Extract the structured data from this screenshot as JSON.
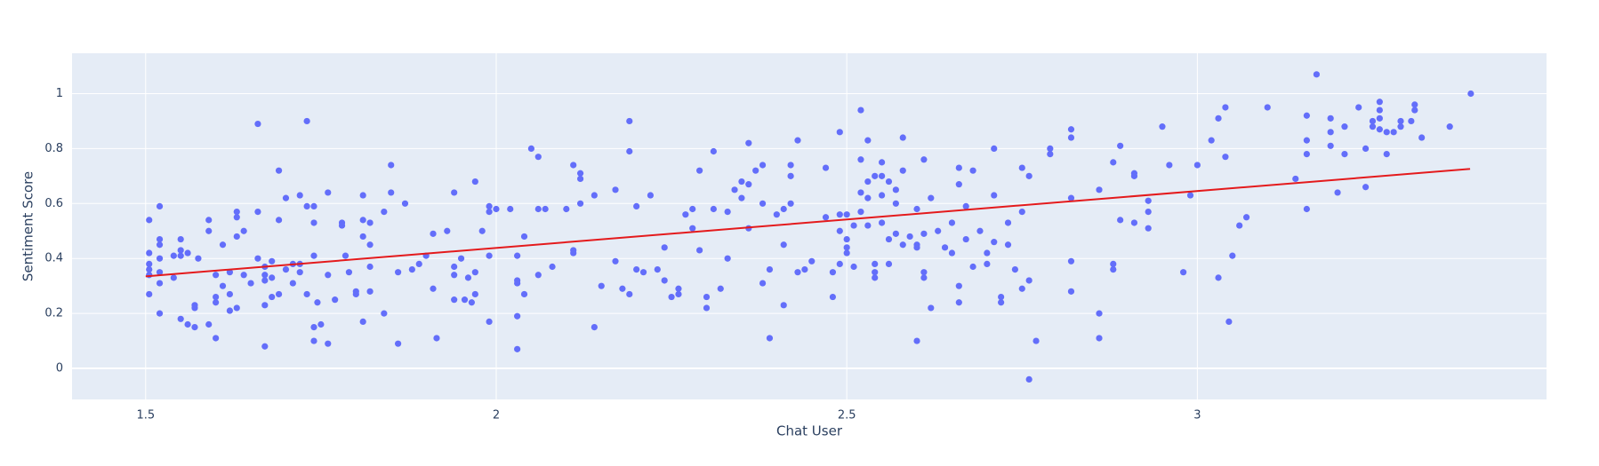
{
  "chart_data": {
    "type": "scatter",
    "x_label": "Chat User",
    "y_label": "Sentiment Score",
    "color": "#636efa",
    "x": [
      1.505,
      1.505,
      1.505,
      1.505,
      1.505,
      1.505,
      1.52,
      1.52,
      1.52,
      1.52,
      1.52,
      1.52,
      1.52,
      1.54,
      1.54,
      1.55,
      1.55,
      1.55,
      1.55,
      1.56,
      1.56,
      1.57,
      1.57,
      1.57,
      1.575,
      1.59,
      1.59,
      1.59,
      1.6,
      1.6,
      1.6,
      1.6,
      1.61,
      1.61,
      1.62,
      1.62,
      1.62,
      1.63,
      1.63,
      1.63,
      1.63,
      1.64,
      1.64,
      1.65,
      1.66,
      1.66,
      1.66,
      1.67,
      1.67,
      1.67,
      1.67,
      1.67,
      1.68,
      1.68,
      1.68,
      1.69,
      1.69,
      1.69,
      1.7,
      1.7,
      1.71,
      1.71,
      1.72,
      1.72,
      1.72,
      1.73,
      1.73,
      1.73,
      1.74,
      1.74,
      1.74,
      1.74,
      1.74,
      1.745,
      1.75,
      1.76,
      1.76,
      1.76,
      1.77,
      1.78,
      1.78,
      1.785,
      1.79,
      1.8,
      1.8,
      1.81,
      1.81,
      1.81,
      1.81,
      1.82,
      1.82,
      1.82,
      1.82,
      1.84,
      1.84,
      1.85,
      1.85,
      1.86,
      1.86,
      1.87,
      1.88,
      1.89,
      1.9,
      1.91,
      1.91,
      1.915,
      1.93,
      1.94,
      1.94,
      1.94,
      1.94,
      1.95,
      1.955,
      1.96,
      1.965,
      1.97,
      1.97,
      1.97,
      1.98,
      1.99,
      1.99,
      1.99,
      1.99,
      2.0,
      2.02,
      2.03,
      2.03,
      2.03,
      2.03,
      2.03,
      2.04,
      2.04,
      2.05,
      2.06,
      2.06,
      2.06,
      2.07,
      2.08,
      2.1,
      2.11,
      2.11,
      2.11,
      2.12,
      2.12,
      2.12,
      2.14,
      2.14,
      2.15,
      2.17,
      2.17,
      2.18,
      2.19,
      2.19,
      2.19,
      2.2,
      2.2,
      2.21,
      2.22,
      2.23,
      2.24,
      2.24,
      2.25,
      2.26,
      2.26,
      2.27,
      2.28,
      2.28,
      2.29,
      2.29,
      2.3,
      2.3,
      2.31,
      2.31,
      2.32,
      2.33,
      2.33,
      2.34,
      2.35,
      2.35,
      2.36,
      2.36,
      2.36,
      2.37,
      2.38,
      2.38,
      2.38,
      2.39,
      2.39,
      2.4,
      2.41,
      2.41,
      2.41,
      2.42,
      2.42,
      2.42,
      2.43,
      2.43,
      2.44,
      2.45,
      2.47,
      2.48,
      2.49,
      2.49,
      2.5,
      2.5,
      2.52,
      2.52,
      2.53,
      2.53,
      2.54,
      2.54,
      2.55,
      2.55,
      2.56,
      2.57,
      2.58,
      2.6,
      2.6,
      2.6,
      2.61,
      2.61,
      2.47,
      2.48,
      2.49,
      2.49,
      2.5,
      2.5,
      2.51,
      2.51,
      2.52,
      2.52,
      2.53,
      2.53,
      2.54,
      2.54,
      2.55,
      2.55,
      2.56,
      2.56,
      2.57,
      2.57,
      2.58,
      2.58,
      2.59,
      2.6,
      2.61,
      2.61,
      2.62,
      2.62,
      2.63,
      2.64,
      2.65,
      2.65,
      2.66,
      2.66,
      2.66,
      2.66,
      2.67,
      2.67,
      2.68,
      2.68,
      2.69,
      2.7,
      2.7,
      2.71,
      2.71,
      2.71,
      2.72,
      2.72,
      2.73,
      2.73,
      2.74,
      2.75,
      2.75,
      2.75,
      2.76,
      2.76,
      2.77,
      2.79,
      2.79,
      2.82,
      2.82,
      2.82,
      2.82,
      2.82,
      2.86,
      2.86,
      2.86,
      2.88,
      2.88,
      2.88,
      2.89,
      2.89,
      2.91,
      2.91,
      2.91,
      2.93,
      2.93,
      2.93,
      2.95,
      2.96,
      2.98,
      2.99,
      3.0,
      3.02,
      3.03,
      3.03,
      3.04,
      3.04,
      3.045,
      3.05,
      3.06,
      3.07,
      3.1,
      3.14,
      3.156,
      3.156,
      3.156,
      3.156,
      3.17,
      3.19,
      3.19,
      3.19,
      3.2,
      3.21,
      3.21,
      3.23,
      3.24,
      3.24,
      3.25,
      3.25,
      3.26,
      3.26,
      3.26,
      3.26,
      3.27,
      3.27,
      3.28,
      3.29,
      3.29,
      3.305,
      3.31,
      3.31,
      3.32,
      3.36,
      3.39,
      2.76
    ],
    "values": [
      0.54,
      0.42,
      0.38,
      0.36,
      0.34,
      0.27,
      0.59,
      0.47,
      0.45,
      0.4,
      0.35,
      0.31,
      0.2,
      0.41,
      0.33,
      0.47,
      0.43,
      0.41,
      0.18,
      0.42,
      0.16,
      0.23,
      0.22,
      0.15,
      0.4,
      0.54,
      0.5,
      0.16,
      0.34,
      0.26,
      0.24,
      0.11,
      0.45,
      0.3,
      0.35,
      0.27,
      0.21,
      0.57,
      0.55,
      0.48,
      0.22,
      0.34,
      0.5,
      0.31,
      0.89,
      0.57,
      0.4,
      0.37,
      0.34,
      0.32,
      0.23,
      0.08,
      0.39,
      0.33,
      0.26,
      0.72,
      0.54,
      0.27,
      0.62,
      0.36,
      0.38,
      0.31,
      0.63,
      0.38,
      0.35,
      0.9,
      0.59,
      0.27,
      0.59,
      0.53,
      0.41,
      0.15,
      0.1,
      0.24,
      0.16,
      0.64,
      0.34,
      0.09,
      0.25,
      0.53,
      0.52,
      0.41,
      0.35,
      0.28,
      0.27,
      0.63,
      0.54,
      0.48,
      0.17,
      0.53,
      0.45,
      0.28,
      0.37,
      0.2,
      0.57,
      0.64,
      0.74,
      0.35,
      0.09,
      0.6,
      0.36,
      0.38,
      0.41,
      0.49,
      0.29,
      0.11,
      0.5,
      0.64,
      0.37,
      0.34,
      0.25,
      0.4,
      0.25,
      0.33,
      0.24,
      0.35,
      0.68,
      0.27,
      0.5,
      0.57,
      0.59,
      0.41,
      0.17,
      0.58,
      0.58,
      0.41,
      0.32,
      0.31,
      0.19,
      0.07,
      0.48,
      0.27,
      0.8,
      0.77,
      0.58,
      0.34,
      0.58,
      0.37,
      0.58,
      0.74,
      0.43,
      0.42,
      0.69,
      0.71,
      0.6,
      0.63,
      0.15,
      0.3,
      0.65,
      0.39,
      0.29,
      0.9,
      0.79,
      0.27,
      0.59,
      0.36,
      0.35,
      0.63,
      0.36,
      0.44,
      0.32,
      0.26,
      0.27,
      0.29,
      0.56,
      0.58,
      0.51,
      0.43,
      0.72,
      0.22,
      0.26,
      0.79,
      0.58,
      0.29,
      0.57,
      0.4,
      0.65,
      0.68,
      0.62,
      0.82,
      0.67,
      0.51,
      0.72,
      0.74,
      0.6,
      0.31,
      0.11,
      0.36,
      0.56,
      0.58,
      0.45,
      0.23,
      0.74,
      0.7,
      0.6,
      0.83,
      0.35,
      0.36,
      0.39,
      0.73,
      0.35,
      0.86,
      0.56,
      0.42,
      0.44,
      0.94,
      0.76,
      0.83,
      0.62,
      0.38,
      0.35,
      0.75,
      0.7,
      0.47,
      0.49,
      0.45,
      0.45,
      0.44,
      0.1,
      0.76,
      0.35,
      0.55,
      0.26,
      0.5,
      0.38,
      0.56,
      0.47,
      0.52,
      0.37,
      0.64,
      0.57,
      0.68,
      0.52,
      0.7,
      0.33,
      0.63,
      0.53,
      0.68,
      0.38,
      0.65,
      0.6,
      0.84,
      0.72,
      0.48,
      0.58,
      0.49,
      0.33,
      0.62,
      0.22,
      0.5,
      0.44,
      0.53,
      0.42,
      0.73,
      0.67,
      0.3,
      0.24,
      0.59,
      0.47,
      0.72,
      0.37,
      0.5,
      0.42,
      0.38,
      0.8,
      0.63,
      0.46,
      0.26,
      0.24,
      0.53,
      0.45,
      0.36,
      0.73,
      0.57,
      0.29,
      0.7,
      0.32,
      0.1,
      0.8,
      0.78,
      0.87,
      0.84,
      0.62,
      0.39,
      0.28,
      0.65,
      0.2,
      0.11,
      0.75,
      0.38,
      0.36,
      0.81,
      0.54,
      0.71,
      0.7,
      0.53,
      0.61,
      0.57,
      0.51,
      0.88,
      0.74,
      0.35,
      0.63,
      0.74,
      0.83,
      0.33,
      0.91,
      0.95,
      0.77,
      0.17,
      0.41,
      0.52,
      0.55,
      0.95,
      0.69,
      0.92,
      0.83,
      0.78,
      0.58,
      1.07,
      0.91,
      0.86,
      0.81,
      0.64,
      0.88,
      0.78,
      0.95,
      0.8,
      0.66,
      0.9,
      0.88,
      0.97,
      0.94,
      0.91,
      0.87,
      0.86,
      0.78,
      0.86,
      0.88,
      0.9,
      0.9,
      0.94,
      0.96,
      0.84,
      0.88,
      1.0,
      -0.04
    ],
    "trendline": {
      "x": [
        1.5,
        3.389
      ],
      "values": [
        0.335,
        0.726
      ],
      "color": "#e41a1c"
    },
    "xlim": [
      1.395,
      3.498
    ],
    "xticks": [
      1.5,
      2,
      2.5,
      3
    ],
    "ylim": [
      -0.113,
      1.147
    ],
    "yticks": [
      0,
      0.2,
      0.4,
      0.6,
      0.8,
      1
    ],
    "grid": true
  }
}
